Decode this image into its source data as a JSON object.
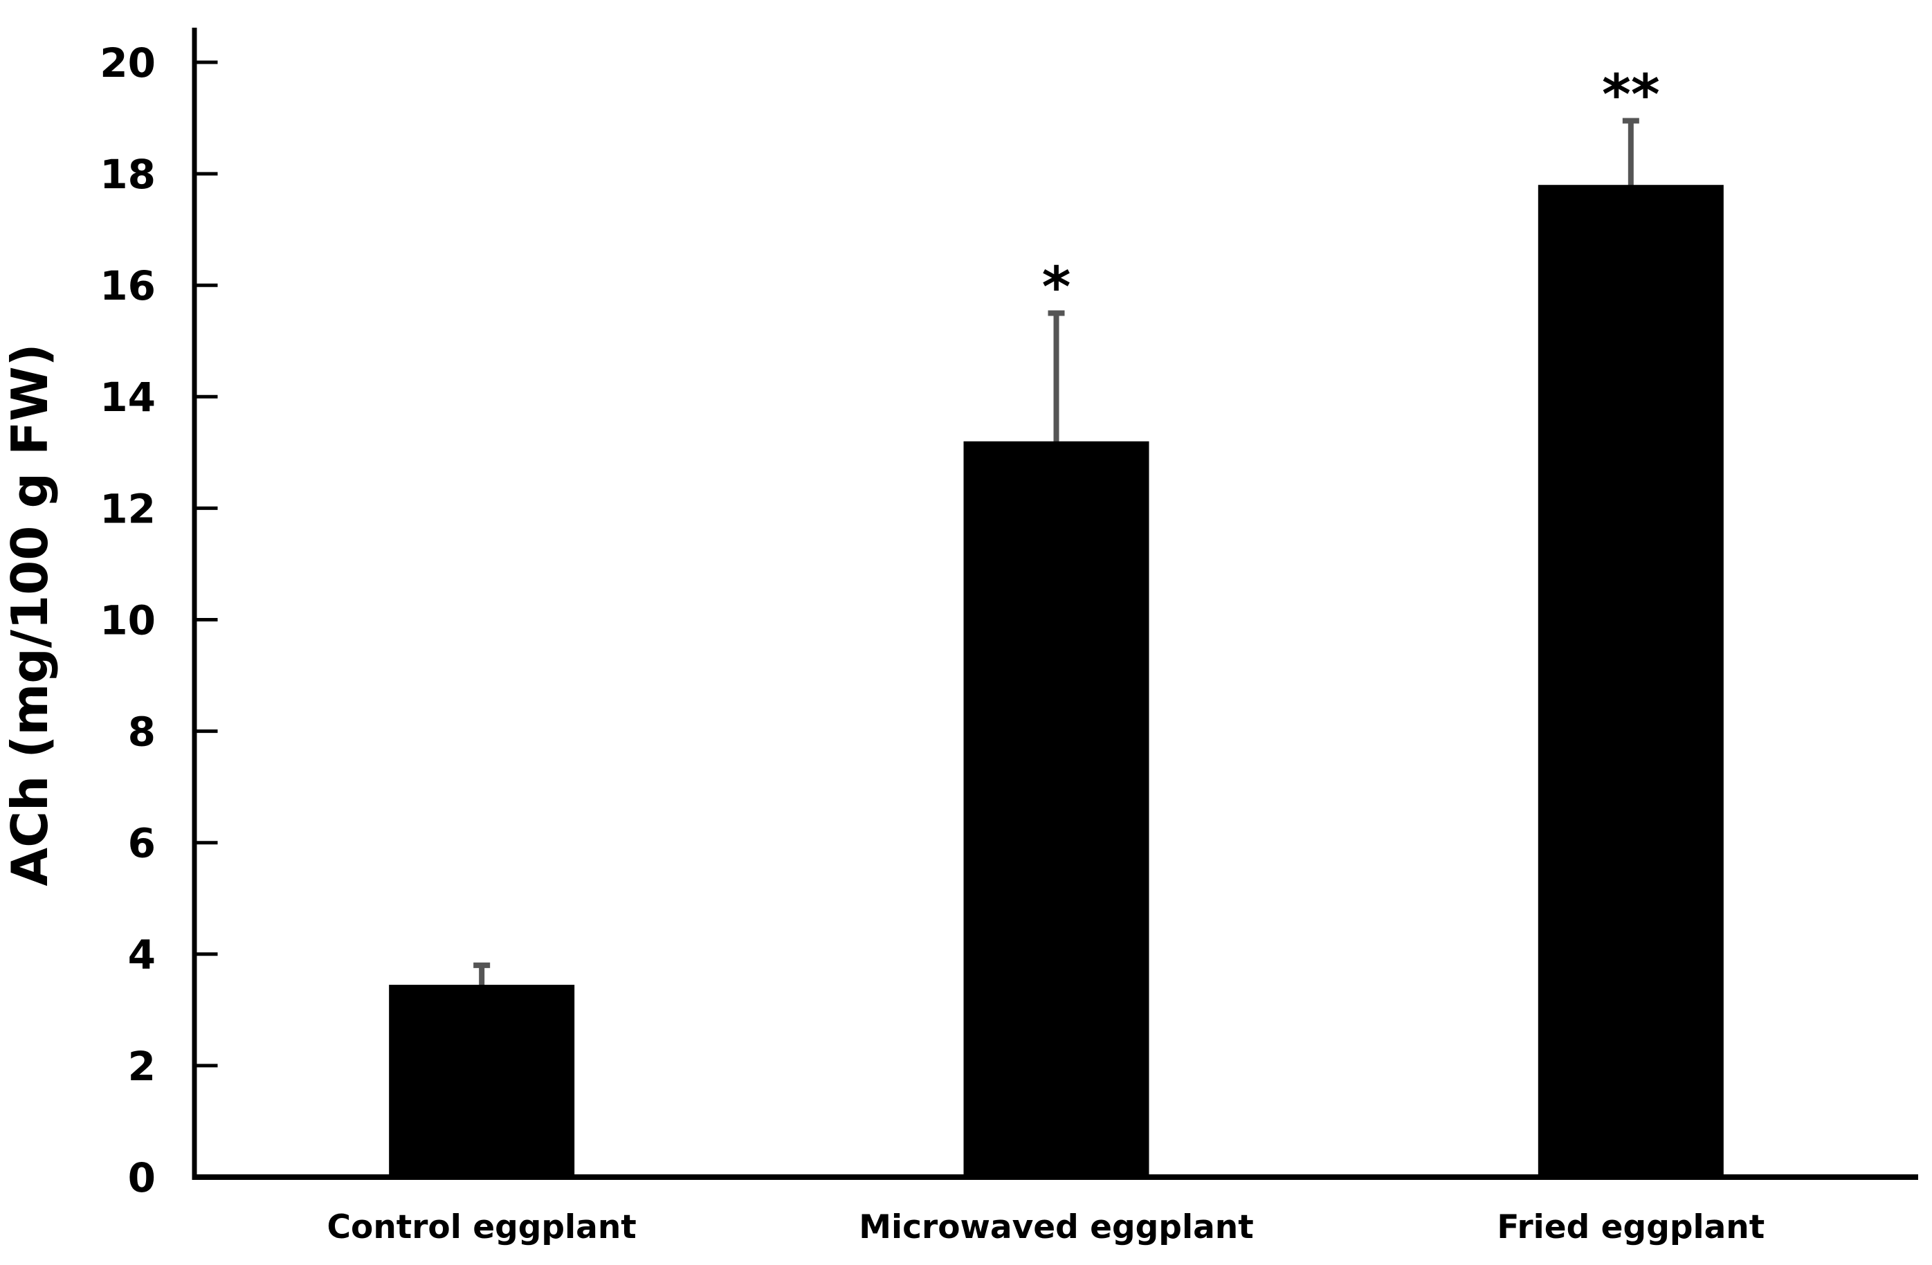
{
  "chart_data": {
    "type": "bar",
    "categories": [
      "Control eggplant",
      "Microwaved eggplant",
      "Fried eggplant"
    ],
    "values": [
      3.45,
      13.2,
      17.8
    ],
    "errors_plus": [
      0.4,
      2.35,
      1.2
    ],
    "significance_marks": [
      "",
      "*",
      "**"
    ],
    "title": "",
    "xlabel": "",
    "ylabel": "ACh (mg/100 g FW)",
    "ylim": [
      0,
      20
    ],
    "ytick_step": 2,
    "ytick_labels": [
      "0",
      "2",
      "4",
      "6",
      "8",
      "10",
      "12",
      "14",
      "16",
      "18",
      "20"
    ],
    "legend": "none",
    "grid": "off",
    "bar_color": "#000000",
    "error_bar_color": "#555555",
    "text_color": "#000000",
    "background_color": "#ffffff"
  }
}
